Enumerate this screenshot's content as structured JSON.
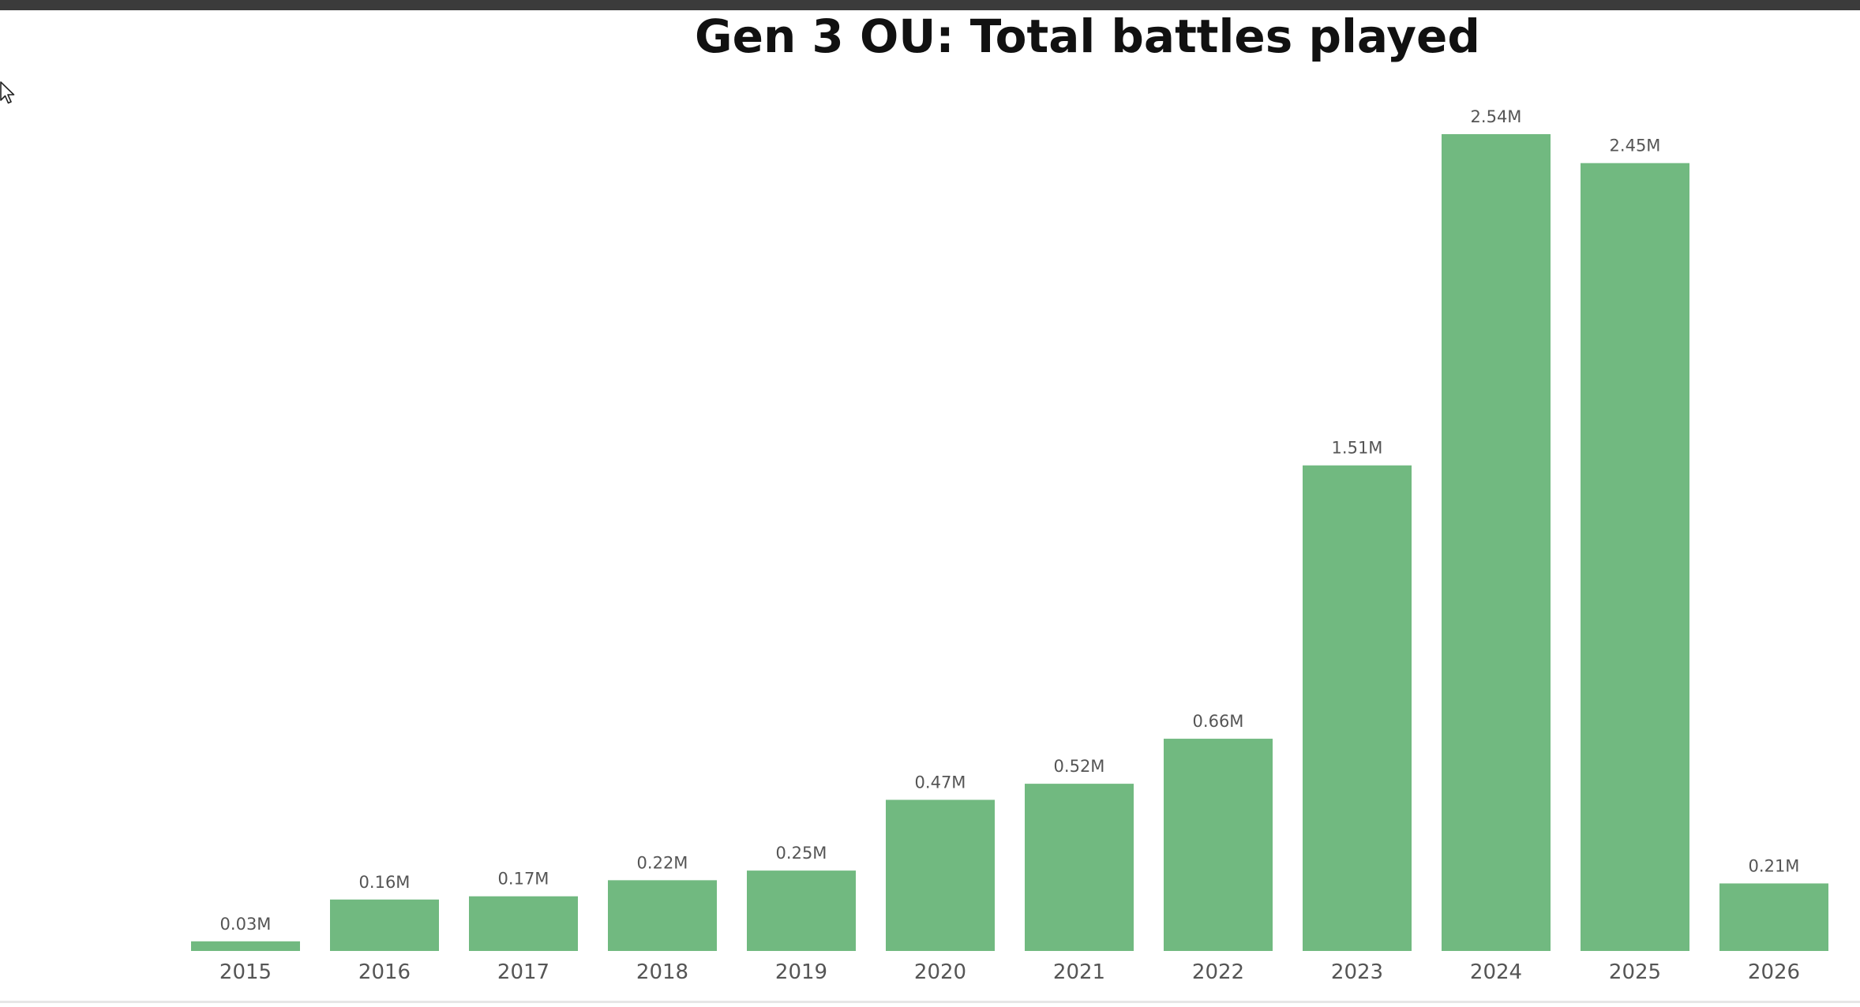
{
  "chart_data": {
    "type": "bar",
    "title": "Gen 3 OU: Total battles played",
    "xlabel": "",
    "ylabel": "",
    "ylim": [
      0,
      2.54
    ],
    "categories": [
      "2015",
      "2016",
      "2017",
      "2018",
      "2019",
      "2020",
      "2021",
      "2022",
      "2023",
      "2024",
      "2025",
      "2026"
    ],
    "values": [
      0.03,
      0.16,
      0.17,
      0.22,
      0.25,
      0.47,
      0.52,
      0.66,
      1.51,
      2.54,
      2.45,
      0.21
    ],
    "labels": [
      "0.03M",
      "0.16M",
      "0.17M",
      "0.22M",
      "0.25M",
      "0.47M",
      "0.52M",
      "0.66M",
      "1.51M",
      "2.54M",
      "2.45M",
      "0.21M"
    ],
    "bar_color": "#71b980",
    "grid": false,
    "legend": "none"
  }
}
